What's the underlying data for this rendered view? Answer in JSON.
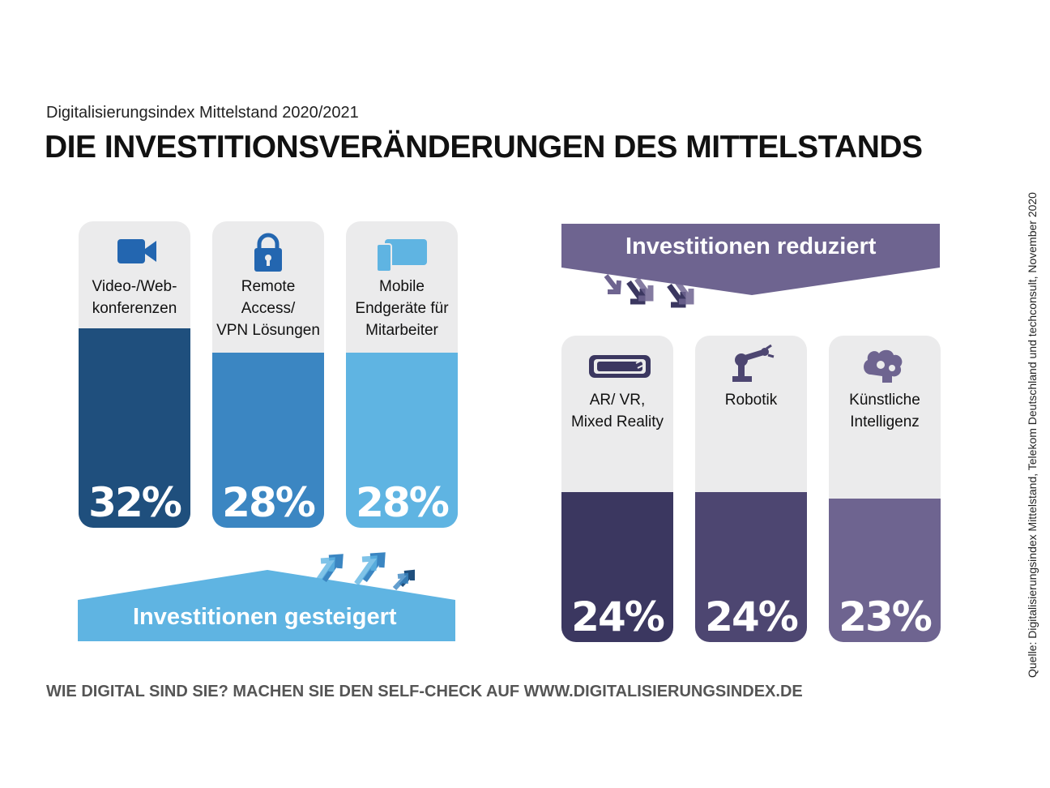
{
  "subtitle": "Digitalisierungsindex Mittelstand 2020/2021",
  "title": "DIE INVESTITIONSVERÄNDERUNGEN DES MITTELSTANDS",
  "source": "Quelle: Digitalisierungsindex Mittelstand, Telekom Deutschland und techconsult, November 2020",
  "footer": "WIE DIGITAL SIND SIE? MACHEN SIE DEN SELF-CHECK AUF WWW.DIGITALISIERUNGSINDEX.DE",
  "increased": {
    "banner": "Investitionen gesteigert",
    "color": "#5fb4e2"
  },
  "reduced": {
    "banner": "Investitionen reduziert",
    "color": "#6e6490"
  },
  "chart_data": [
    {
      "type": "bar",
      "group": "Investitionen gesteigert",
      "categories": [
        "Video-/Web-\nkonferenzen",
        "Remote\nAccess/\nVPN Lösungen",
        "Mobile\nEndgeräte für\nMitarbeiter"
      ],
      "values": [
        32,
        28,
        28
      ],
      "value_labels": [
        "32%",
        "28%",
        "28%"
      ],
      "icons": [
        "video-camera-icon",
        "lock-icon",
        "mobile-devices-icon"
      ],
      "colors": [
        "#1f4f7d",
        "#3b86c2",
        "#5fb4e2"
      ],
      "unit": "%"
    },
    {
      "type": "bar",
      "group": "Investitionen reduziert",
      "categories": [
        "AR/ VR,\nMixed Reality",
        "Robotik",
        "Künstliche\nIntelligenz"
      ],
      "values": [
        24,
        24,
        23
      ],
      "value_labels": [
        "24%",
        "24%",
        "23%"
      ],
      "icons": [
        "vr-headset-icon",
        "robot-arm-icon",
        "brain-gears-icon"
      ],
      "colors": [
        "#3b3760",
        "#4d4671",
        "#6e6490"
      ],
      "unit": "%"
    }
  ]
}
